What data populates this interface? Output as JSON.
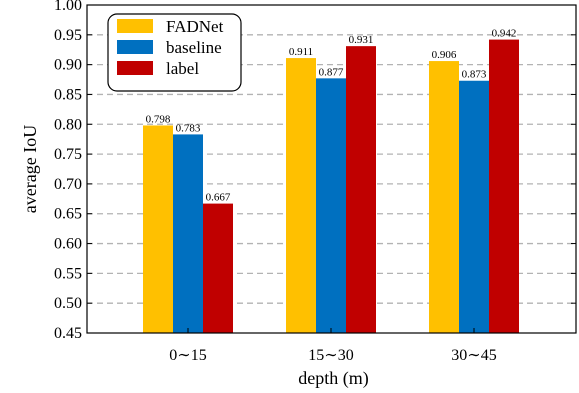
{
  "chart_data": {
    "type": "bar",
    "categories": [
      "0∼15",
      "15∼30",
      "30∼45"
    ],
    "series": [
      {
        "name": "FADNet",
        "values": [
          0.798,
          0.911,
          0.906
        ],
        "color": "#FFC000",
        "labels": [
          "0.798",
          "0.911",
          "0.906"
        ]
      },
      {
        "name": "baseline",
        "values": [
          0.783,
          0.877,
          0.873
        ],
        "color": "#0070C0",
        "labels": [
          "0.783",
          "0.877",
          "0.873"
        ]
      },
      {
        "name": "label",
        "values": [
          0.667,
          0.931,
          0.942
        ],
        "color": "#C00000",
        "labels": [
          "0.667",
          "0.931",
          "0.942"
        ]
      }
    ],
    "xlabel": "depth (m)",
    "ylabel": "average IoU",
    "ylim": [
      0.45,
      1.0
    ],
    "yticks": [
      0.45,
      0.5,
      0.55,
      0.6,
      0.65,
      0.7,
      0.75,
      0.8,
      0.85,
      0.9,
      0.95,
      1.0
    ],
    "ytick_labels": [
      "0.45",
      "0.50",
      "0.55",
      "0.60",
      "0.65",
      "0.70",
      "0.75",
      "0.80",
      "0.85",
      "0.90",
      "0.95",
      "1.00"
    ],
    "grid": "horizontal dashed",
    "legend_position": "top-left"
  }
}
